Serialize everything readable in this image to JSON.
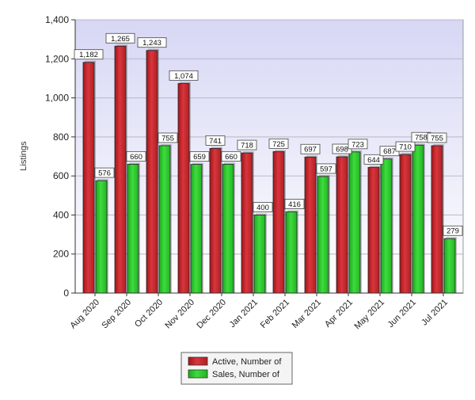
{
  "chart_data": {
    "type": "bar",
    "title": "",
    "xlabel": "",
    "ylabel": "Listings",
    "ylim": [
      0,
      1400
    ],
    "yticks": [
      0,
      200,
      400,
      600,
      800,
      1000,
      1200,
      1400
    ],
    "ytick_labels": [
      "0",
      "200",
      "400",
      "600",
      "800",
      "1,000",
      "1,200",
      "1,400"
    ],
    "grid": true,
    "legend_position": "bottom-center",
    "categories": [
      "Aug 2020",
      "Sep 2020",
      "Oct 2020",
      "Nov 2020",
      "Dec 2020",
      "Jan 2021",
      "Feb 2021",
      "Mar 2021",
      "Apr 2021",
      "May 2021",
      "Jun 2021",
      "Jul 2021"
    ],
    "series": [
      {
        "name": "Active, Number of",
        "color": "#cc2c33",
        "values": [
          1182,
          1265,
          1243,
          1074,
          741,
          718,
          725,
          697,
          698,
          644,
          710,
          755
        ],
        "labels": [
          "1,182",
          "1,265",
          "1,243",
          "1,074",
          "741",
          "718",
          "725",
          "697",
          "698",
          "644",
          "710",
          "755"
        ]
      },
      {
        "name": "Sales, Number of",
        "color": "#2ec82e",
        "values": [
          576,
          660,
          755,
          659,
          660,
          400,
          416,
          597,
          723,
          687,
          758,
          279
        ],
        "labels": [
          "576",
          "660",
          "755",
          "659",
          "660",
          "400",
          "416",
          "597",
          "723",
          "687",
          "758",
          "279"
        ]
      }
    ]
  }
}
